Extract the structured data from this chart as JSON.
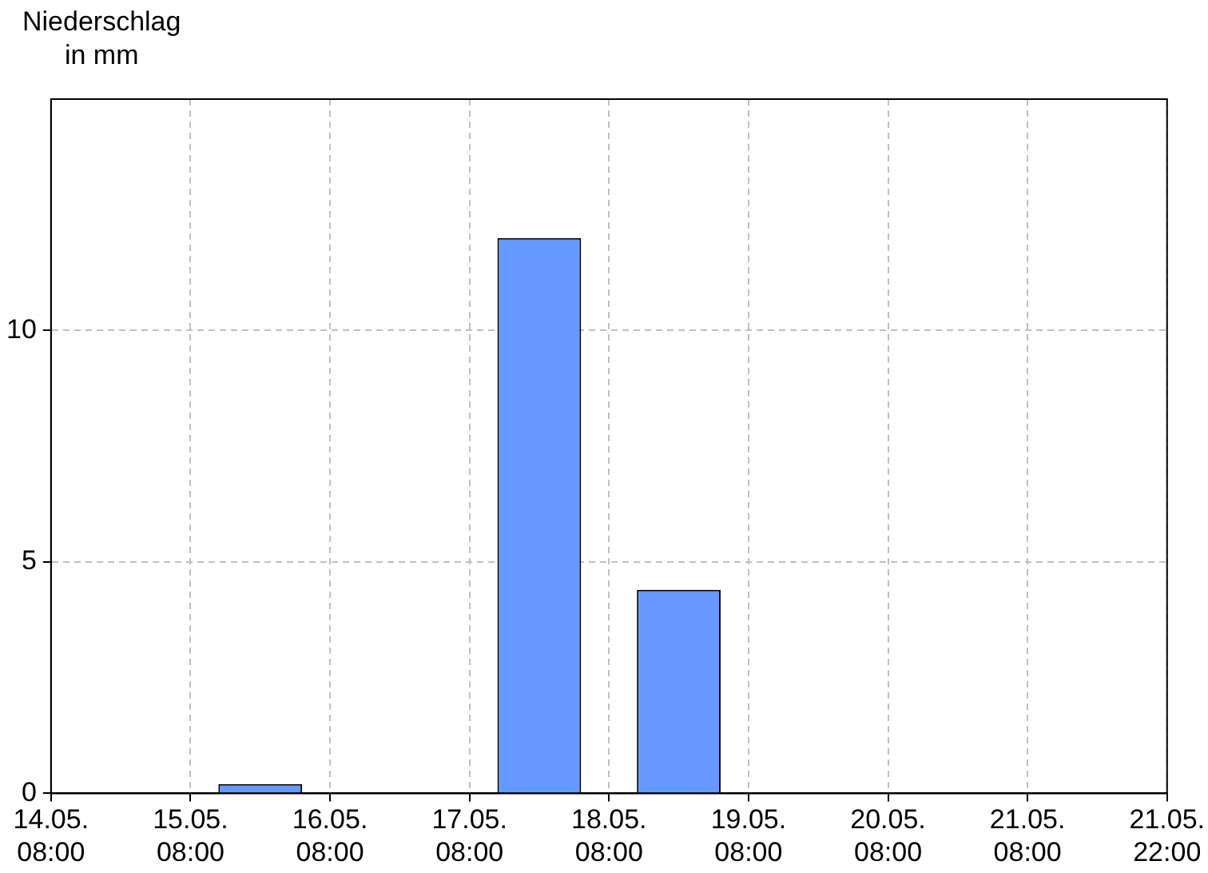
{
  "chart_data": {
    "type": "bar",
    "ylabel": "Niederschlag\nin mm",
    "categories": [
      "14.05.\n08:00",
      "15.05.\n08:00",
      "16.05.\n08:00",
      "17.05.\n08:00",
      "18.05.\n08:00",
      "19.05.\n08:00",
      "20.05.\n08:00",
      "21.05.\n08:00",
      "21.05.\n22:00"
    ],
    "values": [
      0,
      0.2,
      0,
      12,
      4.4,
      0,
      0,
      0,
      null
    ],
    "color": "#6699ff",
    "ylim": [
      0,
      15
    ],
    "yticks": [
      0,
      5,
      10
    ],
    "grid": true
  }
}
